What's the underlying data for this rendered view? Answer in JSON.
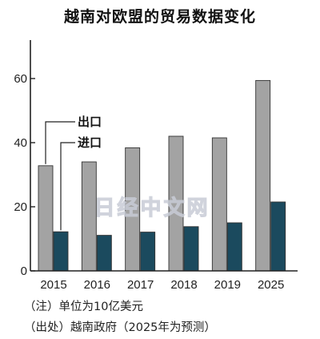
{
  "chart_data": {
    "type": "bar",
    "title": "越南对欧盟的贸易数据变化",
    "categories": [
      "2015",
      "2016",
      "2017",
      "2018",
      "2019",
      "2025"
    ],
    "series": [
      {
        "name": "出口",
        "values": [
          32.8,
          34.0,
          38.4,
          42.0,
          41.5,
          59.4
        ],
        "color": "#a3a3a3"
      },
      {
        "name": "进口",
        "values": [
          12.2,
          11.1,
          12.1,
          13.8,
          15.0,
          21.5
        ],
        "color": "#1b4a5e"
      }
    ],
    "y_ticks": [
      0,
      20,
      40,
      60
    ],
    "ylim": [
      0,
      72
    ],
    "grid": false,
    "legend_position": "left, inside plot"
  },
  "watermark": "日经中文网",
  "notes": {
    "unit": "（注）单位为10亿美元",
    "source": "（出处）越南政府（2025年为预测）"
  }
}
